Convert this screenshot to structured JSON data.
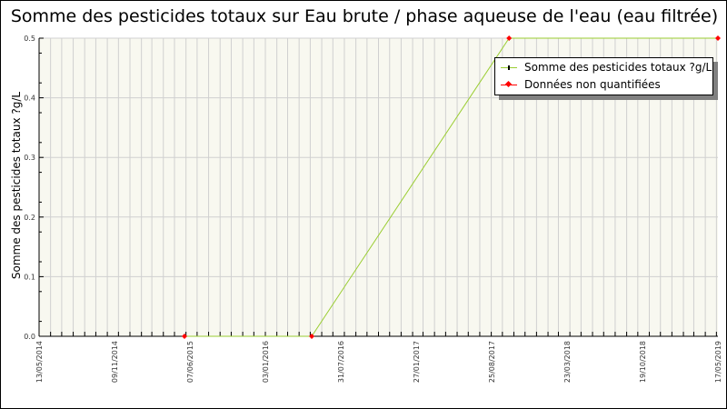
{
  "chart_data": {
    "type": "line",
    "title": "Somme des pesticides totaux sur Eau brute / phase aqueuse de l'eau (eau filtrée)",
    "ylabel": "Somme des pesticides totaux ?g/L",
    "xlabel": "",
    "ylim": [
      0,
      0.5
    ],
    "xlim": [
      "2014-05-13",
      "2019-05-17"
    ],
    "yticks": [
      "0.0",
      "0.1",
      "0.2",
      "0.3",
      "0.4",
      "0.5"
    ],
    "xticks": [
      "13/05/2014",
      "09/11/2014",
      "07/06/2015",
      "03/01/2016",
      "31/07/2016",
      "27/01/2017",
      "25/08/2017",
      "23/03/2018",
      "19/10/2018",
      "17/05/2019"
    ],
    "grid": true,
    "legend_position": "top-right",
    "series": [
      {
        "name": "Somme des pesticides totaux ?g/L",
        "color": "#9acd32",
        "x": [
          "2015-06-09",
          "2016-05-17",
          "2017-10-31",
          "2019-05-17"
        ],
        "y": [
          0,
          0,
          0.5,
          0.5
        ]
      },
      {
        "name": "Données non quantifiées",
        "color": "#ff0000",
        "x": [
          "2015-06-09",
          "2016-05-17",
          "2017-10-31",
          "2019-05-17"
        ],
        "y": [
          0,
          0,
          0.5,
          0.5
        ]
      }
    ]
  }
}
